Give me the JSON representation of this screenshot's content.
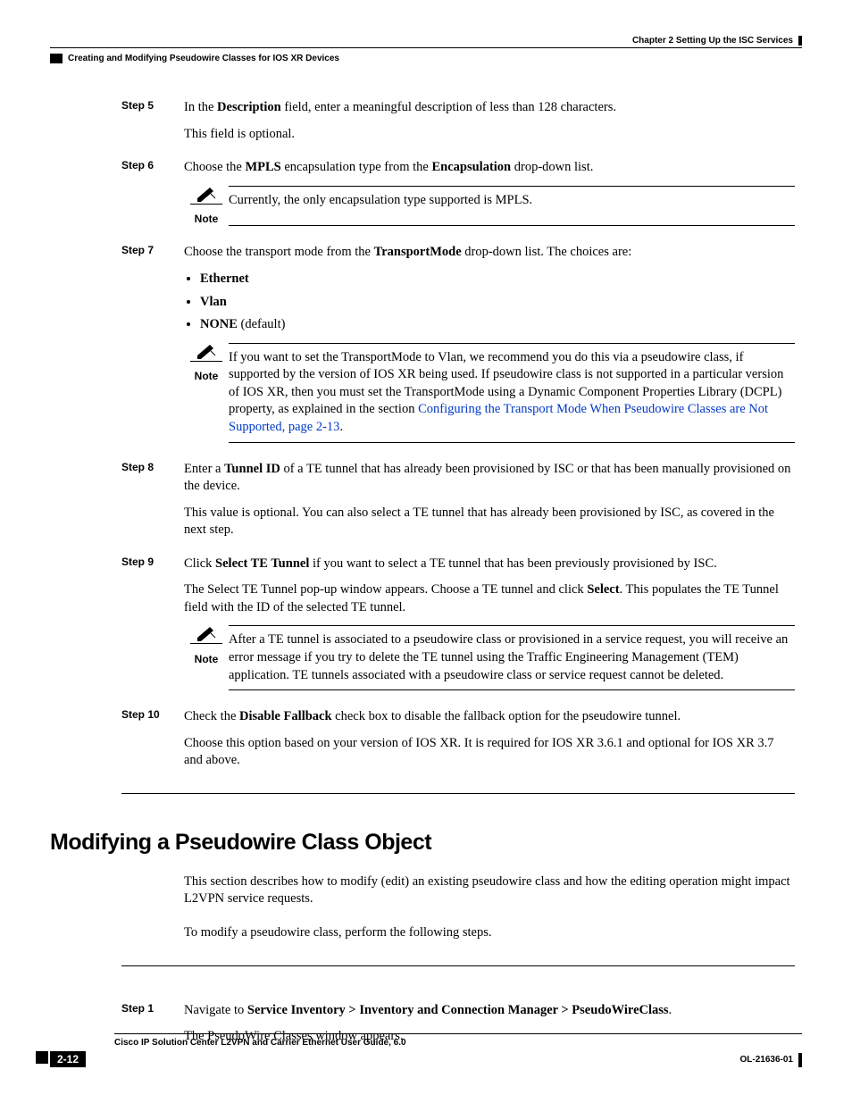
{
  "header": {
    "chapter": "Chapter 2      Setting Up the ISC Services",
    "subheader": "Creating and Modifying Pseudowire Classes for IOS XR Devices"
  },
  "steps": [
    {
      "label": "Step 5",
      "paragraphs": [
        "In the <b>Description</b> field, enter a meaningful description of less than 128 characters.",
        "This field is optional."
      ]
    },
    {
      "label": "Step 6",
      "paragraphs": [
        "Choose the <b>MPLS</b> encapsulation type from the <b>Encapsulation</b> drop-down list."
      ],
      "note": "Currently, the only encapsulation type supported is MPLS."
    },
    {
      "label": "Step 7",
      "paragraphs": [
        "Choose the transport mode from the <b>TransportMode</b> drop-down list. The choices are:"
      ],
      "bullets": [
        "<b>Ethernet</b>",
        "<b>Vlan</b>",
        "<b>NONE</b> (default)"
      ],
      "note": "If you want to set the TransportMode to Vlan, we recommend you do this via a pseudowire class, if supported by the version of IOS XR being used. If pseudowire class is not supported in a particular version of IOS XR, then you must set the TransportMode using a Dynamic Component Properties Library (DCPL) property, as explained in the section <span class=\"link\">Configuring the Transport Mode When Pseudowire Classes are Not Supported, page 2-13</span>."
    },
    {
      "label": "Step 8",
      "paragraphs": [
        "Enter a <b>Tunnel ID</b> of a TE tunnel that has already been provisioned by ISC or that has been manually provisioned on the device.",
        "This value is optional. You can also select a TE tunnel that has already been provisioned by ISC, as covered in the next step."
      ]
    },
    {
      "label": "Step 9",
      "paragraphs": [
        "Click <b>Select TE Tunnel</b> if you want to select a TE tunnel that has been previously provisioned by ISC.",
        "The Select TE Tunnel pop-up window appears. Choose a TE tunnel and click <b>Select</b>. This populates the TE Tunnel field with the ID of the selected TE tunnel."
      ],
      "note": "After a TE tunnel is associated to a pseudowire class or provisioned in a service request, you will receive an error message if you try to delete the TE tunnel using the Traffic Engineering Management (TEM) application. TE tunnels associated with a pseudowire class or service request cannot be deleted."
    },
    {
      "label": "Step 10",
      "paragraphs": [
        "Check the <b>Disable Fallback</b> check box to disable the fallback option for the pseudowire tunnel.",
        "Choose this option based on your version of IOS XR. It is required for IOS XR 3.6.1 and optional for IOS XR 3.7 and above."
      ]
    }
  ],
  "sectionHeading": "Modifying a Pseudowire Class Object",
  "sectionParagraphs": [
    "This section describes how to modify (edit) an existing pseudowire class and how the editing operation might impact L2VPN service requests.",
    "To modify a pseudowire class, perform the following steps."
  ],
  "sectionSteps": [
    {
      "label": "Step 1",
      "paragraphs": [
        "Navigate to <b>Service Inventory > Inventory and Connection Manager > PseudoWireClass</b>.",
        "The PseudoWire Classes window appears."
      ]
    }
  ],
  "noteLabel": "Note",
  "footer": {
    "title": "Cisco IP Solution Center L2VPN and Carrier Ethernet User Guide, 6.0",
    "docId": "OL-21636-01",
    "pageNum": "2-12"
  }
}
